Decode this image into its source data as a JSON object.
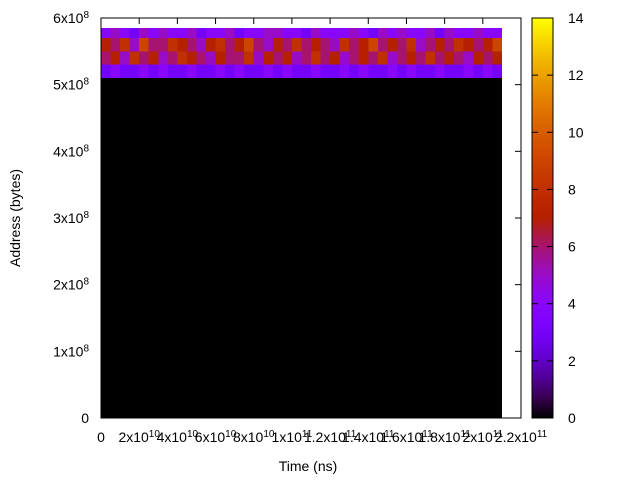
{
  "chart_data": {
    "type": "heatmap",
    "xlabel": "Time (ns)",
    "ylabel": "Address (bytes)",
    "xlim": [
      0,
      220000000000
    ],
    "xticks": [
      0,
      {
        "value": 20000000000,
        "label": "2x10",
        "sup": "10"
      },
      {
        "value": 40000000000,
        "label": "4x10",
        "sup": "10"
      },
      {
        "value": 60000000000,
        "label": "6x10",
        "sup": "10"
      },
      {
        "value": 80000000000,
        "label": "8x10",
        "sup": "10"
      },
      {
        "value": 100000000000,
        "label": "1x10",
        "sup": "11"
      },
      {
        "value": 120000000000,
        "label": "1.2x10",
        "sup": "11"
      },
      {
        "value": 140000000000,
        "label": "1.4x10",
        "sup": "11"
      },
      {
        "value": 160000000000,
        "label": "1.6x10",
        "sup": "11"
      },
      {
        "value": 180000000000,
        "label": "1.8x10",
        "sup": "11"
      },
      {
        "value": 200000000000,
        "label": "2x10",
        "sup": "11"
      },
      {
        "value": 220000000000,
        "label": "2.2x10",
        "sup": "11"
      }
    ],
    "ylim": [
      0,
      600000000
    ],
    "yticks": [
      0,
      {
        "value": 100000000,
        "label": "1x10",
        "sup": "8"
      },
      {
        "value": 200000000,
        "label": "2x10",
        "sup": "8"
      },
      {
        "value": 300000000,
        "label": "3x10",
        "sup": "8"
      },
      {
        "value": 400000000,
        "label": "4x10",
        "sup": "8"
      },
      {
        "value": 500000000,
        "label": "5x10",
        "sup": "8"
      },
      {
        "value": 600000000,
        "label": "6x10",
        "sup": "8"
      }
    ],
    "cblim": [
      0,
      14
    ],
    "cbticks": [
      0,
      2,
      4,
      6,
      8,
      10,
      12,
      14
    ],
    "xbins": [
      0,
      5000000000,
      10000000000,
      15000000000,
      20000000000,
      25000000000,
      30000000000,
      35000000000,
      40000000000,
      45000000000,
      50000000000,
      55000000000,
      60000000000,
      65000000000,
      70000000000,
      75000000000,
      80000000000,
      85000000000,
      90000000000,
      95000000000,
      100000000000,
      105000000000,
      110000000000,
      115000000000,
      120000000000,
      125000000000,
      130000000000,
      135000000000,
      140000000000,
      145000000000,
      150000000000,
      155000000000,
      160000000000,
      165000000000,
      170000000000,
      175000000000,
      180000000000,
      185000000000,
      190000000000,
      195000000000,
      200000000000,
      205000000000,
      210000000000
    ],
    "ybins": [
      0,
      510000000,
      530000000,
      550000000,
      570000000,
      585000000
    ],
    "z": [
      [
        0,
        0,
        0,
        0,
        0,
        0,
        0,
        0,
        0,
        0,
        0,
        0,
        0,
        0,
        0,
        0,
        0,
        0,
        0,
        0,
        0,
        0,
        0,
        0,
        0,
        0,
        0,
        0,
        0,
        0,
        0,
        0,
        0,
        0,
        0,
        0,
        0,
        0,
        0,
        0,
        0,
        0
      ],
      [
        3,
        4,
        3,
        3,
        4,
        3,
        4,
        3,
        3,
        4,
        3,
        3,
        4,
        3,
        4,
        3,
        3,
        4,
        3,
        4,
        3,
        3,
        4,
        3,
        3,
        4,
        3,
        4,
        3,
        3,
        4,
        3,
        4,
        3,
        3,
        4,
        3,
        3,
        4,
        3,
        4,
        3
      ],
      [
        6,
        7,
        5,
        8,
        6,
        7,
        5,
        6,
        8,
        7,
        6,
        5,
        7,
        6,
        6,
        8,
        5,
        7,
        6,
        7,
        5,
        6,
        8,
        6,
        7,
        5,
        6,
        7,
        6,
        8,
        5,
        6,
        7,
        6,
        8,
        6,
        7,
        6,
        5,
        7,
        6,
        7
      ],
      [
        7,
        6,
        8,
        5,
        9,
        6,
        6,
        8,
        7,
        6,
        5,
        7,
        8,
        6,
        7,
        9,
        6,
        5,
        7,
        6,
        8,
        6,
        7,
        6,
        5,
        8,
        6,
        7,
        9,
        6,
        7,
        6,
        8,
        5,
        6,
        7,
        6,
        8,
        7,
        6,
        7,
        9
      ],
      [
        4,
        5,
        4,
        3,
        5,
        4,
        5,
        4,
        4,
        5,
        3,
        4,
        4,
        5,
        3,
        4,
        4,
        5,
        5,
        4,
        4,
        3,
        5,
        4,
        4,
        4,
        5,
        4,
        3,
        5,
        4,
        5,
        4,
        4,
        5,
        3,
        5,
        4,
        4,
        5,
        4,
        4
      ]
    ]
  }
}
